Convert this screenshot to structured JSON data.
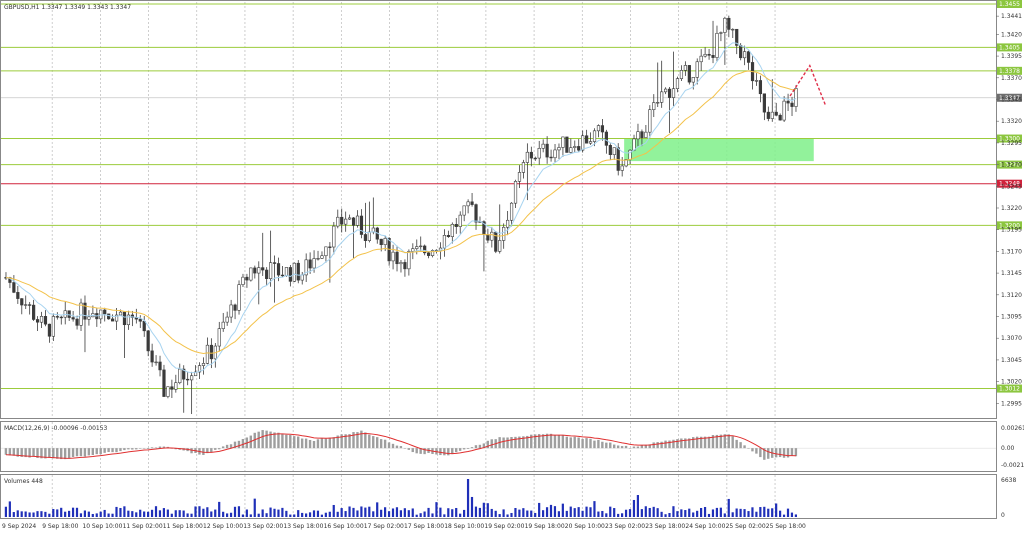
{
  "header": {
    "symbol_info": "GBPUSD,H1  1.3347 1.3349 1.3343 1.3347"
  },
  "colors": {
    "up_candle": "#3a3a3a",
    "down_candle": "#3a3a3a",
    "ma_fast": "#a8d4f0",
    "ma_slow": "#f3c24a",
    "level_line": "#9ccc3c",
    "level_tag": "#8cc63f",
    "resistance_line": "#d0233c",
    "zone_fill": "#7ff08a",
    "macd_signal": "#e03030",
    "macd_hist": "#9e9e9e",
    "volume_bar": "#1f2fb8",
    "projection": "#e0304a"
  },
  "chart_data": [
    {
      "id": "price",
      "type": "candlestick",
      "ylim": [
        1.2985,
        1.3455
      ],
      "price_scale_ticks": [
        "1.3441",
        "1.3420",
        "1.3395",
        "1.3370",
        "1.3345",
        "1.3320",
        "1.3295",
        "1.3270",
        "1.3245",
        "1.3220",
        "1.3195",
        "1.3170",
        "1.3145",
        "1.3120",
        "1.3095",
        "1.3070",
        "1.3045",
        "1.3020",
        "1.2995"
      ],
      "level_lines": [
        {
          "value": 1.3455,
          "label": "1.3455",
          "style": "level"
        },
        {
          "value": 1.3405,
          "label": "1.3405",
          "style": "level"
        },
        {
          "value": 1.3378,
          "label": "1.3378",
          "style": "level"
        },
        {
          "value": 1.33,
          "label": "1.3300",
          "style": "level"
        },
        {
          "value": 1.327,
          "label": "1.3270",
          "style": "level"
        },
        {
          "value": 1.3248,
          "label": "1.3248",
          "style": "resistance"
        },
        {
          "value": 1.32,
          "label": "1.3200",
          "style": "level"
        },
        {
          "value": 1.3012,
          "label": "1.3012",
          "style": "level"
        }
      ],
      "current_price": {
        "value": 1.3347,
        "label": "1.3347"
      },
      "zone": {
        "from_bar": 157,
        "to_bar": 205,
        "high": 1.33,
        "low": 1.3274
      },
      "projection": [
        [
          199,
          1.3349
        ],
        [
          204,
          1.3384
        ],
        [
          208,
          1.3338
        ]
      ],
      "key_points": [
        [
          0,
          1.314
        ],
        [
          10,
          1.308
        ],
        [
          22,
          1.3105
        ],
        [
          33,
          1.3092
        ],
        [
          40,
          1.301
        ],
        [
          52,
          1.3055
        ],
        [
          62,
          1.315
        ],
        [
          75,
          1.3145
        ],
        [
          86,
          1.321
        ],
        [
          100,
          1.316
        ],
        [
          108,
          1.3175
        ],
        [
          118,
          1.322
        ],
        [
          124,
          1.3175
        ],
        [
          132,
          1.328
        ],
        [
          140,
          1.329
        ],
        [
          150,
          1.3305
        ],
        [
          156,
          1.3265
        ],
        [
          166,
          1.335
        ],
        [
          178,
          1.3395
        ],
        [
          182,
          1.3428
        ],
        [
          187,
          1.3395
        ],
        [
          193,
          1.3318
        ],
        [
          200,
          1.3347
        ]
      ]
    },
    {
      "id": "macd",
      "type": "histogram+line",
      "title": "MACD(12,26,9) -0.00096 -0.00153",
      "scale_ticks": [
        "0.00261",
        "0.00",
        "-0.00215"
      ],
      "ylim": [
        -0.0028,
        0.0031
      ],
      "key_points": [
        [
          0,
          -0.0009
        ],
        [
          14,
          -0.0014
        ],
        [
          30,
          -0.0003
        ],
        [
          40,
          0.0002
        ],
        [
          50,
          -0.0009
        ],
        [
          65,
          0.0023
        ],
        [
          78,
          0.001
        ],
        [
          90,
          0.0022
        ],
        [
          104,
          -0.0006
        ],
        [
          112,
          -0.0009
        ],
        [
          125,
          0.0014
        ],
        [
          138,
          0.0018
        ],
        [
          150,
          0.001
        ],
        [
          158,
          0.0001
        ],
        [
          170,
          0.0012
        ],
        [
          183,
          0.0018
        ],
        [
          192,
          -0.0014
        ],
        [
          200,
          -0.001
        ]
      ]
    },
    {
      "id": "volume",
      "type": "bar",
      "title": "Volumes 448",
      "scale_ticks": [
        "6638",
        "0"
      ],
      "ylim": [
        0,
        6638
      ]
    }
  ],
  "time_axis": {
    "labels": [
      "9 Sep 2024",
      "9 Sep 18:00",
      "10 Sep 10:00",
      "11 Sep 02:00",
      "11 Sep 18:00",
      "12 Sep 10:00",
      "13 Sep 02:00",
      "13 Sep 18:00",
      "16 Sep 10:00",
      "17 Sep 02:00",
      "17 Sep 18:00",
      "18 Sep 10:00",
      "19 Sep 02:00",
      "19 Sep 18:00",
      "20 Sep 10:00",
      "23 Sep 02:00",
      "23 Sep 18:00",
      "24 Sep 10:00",
      "25 Sep 02:00",
      "25 Sep 18:00"
    ]
  }
}
